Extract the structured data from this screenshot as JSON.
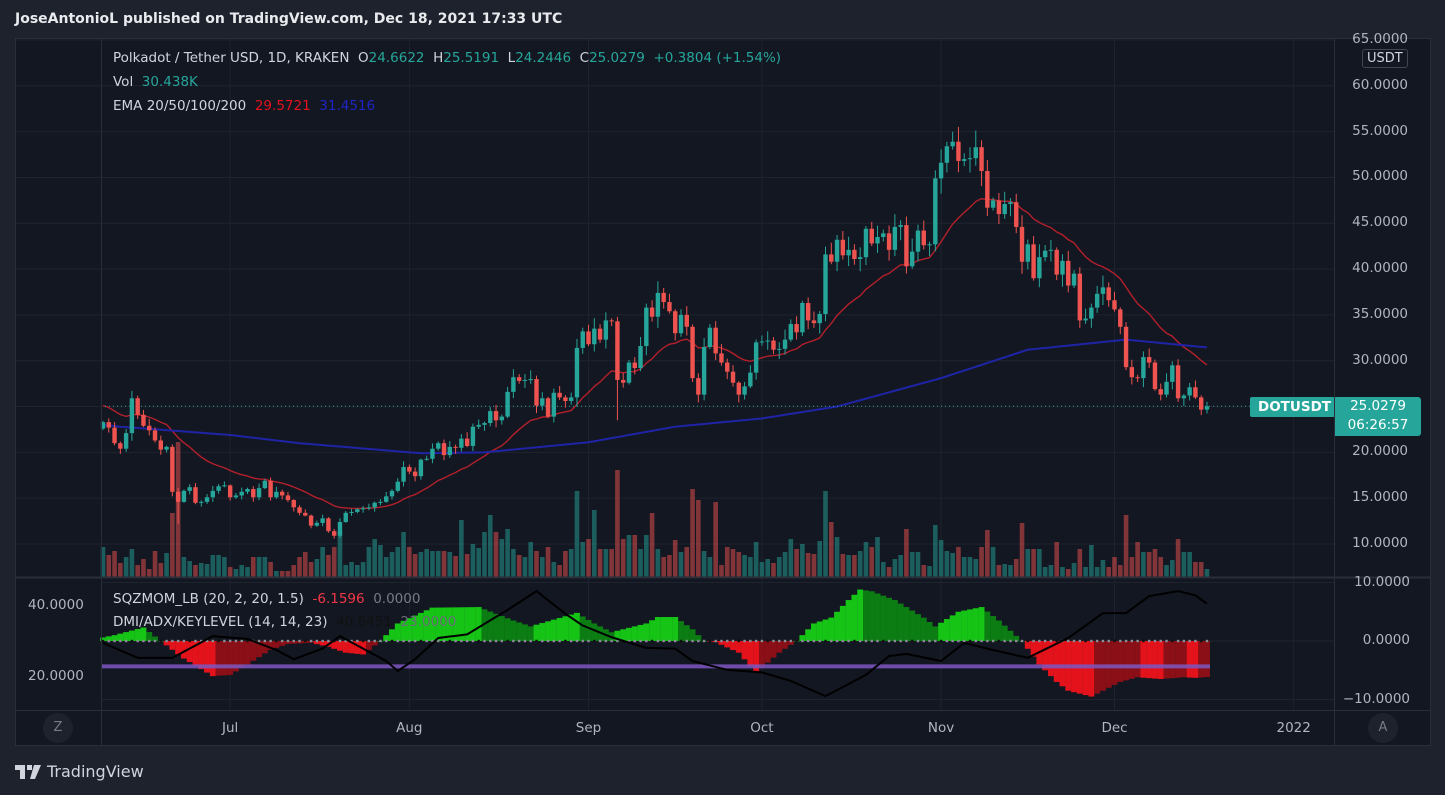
{
  "header": {
    "publish_line": "JoseAntonioL published on TradingView.com, Dec 18, 2021 17:33 UTC"
  },
  "legend": {
    "symbol": "Polkadot / Tether USD, 1D, KRAKEN",
    "o_label": "O",
    "o": "24.6622",
    "h_label": "H",
    "h": "25.5191",
    "l_label": "L",
    "l": "24.2446",
    "c_label": "C",
    "c": "25.0279",
    "change": "+0.3804 (+1.54%)",
    "vol_label": "Vol",
    "vol": "30.438K",
    "ema_label": "EMA 20/50/100/200",
    "ema_a": "29.5721",
    "ema_b": "31.4516"
  },
  "indicator_legend": {
    "sqz_label": "SQZMOM_LB (20, 2, 20, 1.5)",
    "sqz_val": "-6.1596",
    "sqz_val2": "0.0000",
    "dmi_label": "DMI/ADX/KEYLEVEL (14, 14, 23)",
    "dmi_val": "40.6451",
    "dmi_val2": "23.0000"
  },
  "price_axis": {
    "currency": "USDT",
    "ticks": [
      "65.0000",
      "60.0000",
      "55.0000",
      "50.0000",
      "45.0000",
      "40.0000",
      "35.0000",
      "30.0000",
      "20.0000",
      "15.0000",
      "10.0000"
    ],
    "tick_values": [
      65,
      60,
      55,
      50,
      45,
      40,
      35,
      30,
      20,
      15,
      10
    ]
  },
  "indicator_axis_right": {
    "ticks": [
      "10.0000",
      "0.0000",
      "−10.0000"
    ],
    "tick_values": [
      10,
      0,
      -10
    ]
  },
  "indicator_axis_left": {
    "ticks": [
      "40.0000",
      "20.0000"
    ],
    "tick_values": [
      40,
      20
    ]
  },
  "time_axis": {
    "labels": [
      "Jul",
      "Aug",
      "Sep",
      "Oct",
      "Nov",
      "Dec",
      "2022"
    ],
    "label_index": [
      22,
      53,
      84,
      114,
      145,
      175,
      206
    ]
  },
  "last_price": {
    "symbol": "DOTUSDT",
    "price": "25.0279",
    "countdown": "06:26:57",
    "value": 25.0279
  },
  "buttons": {
    "left": "Z",
    "right": "A"
  },
  "footer": {
    "brand": "TradingView"
  },
  "colors": {
    "up": "#26a69a",
    "down": "#ef5350",
    "ema20": "#b3202b",
    "ema_long": "#1f24a6",
    "key_level": "#7e57c2",
    "adx": "#000000",
    "mom_up_strong": "#16c416",
    "mom_up_weak": "#0b7d12",
    "mom_dn_strong": "#e3121b",
    "mom_dn_weak": "#8a0f16"
  },
  "chart_data": {
    "type": "candlestick",
    "title": "Polkadot / Tether USD, 1D, KRAKEN",
    "ylabel": "USDT",
    "ylim": [
      10,
      65
    ],
    "first_open": 22.6,
    "last_ohlc": [
      24.6622,
      25.5191,
      24.2446,
      25.0279
    ],
    "close": [
      23.3,
      22.7,
      21.0,
      20.4,
      22.1,
      25.9,
      24.1,
      22.9,
      22.4,
      21.3,
      20.3,
      20.6,
      15.7,
      14.6,
      15.8,
      16.2,
      14.5,
      14.6,
      15.1,
      15.8,
      16.3,
      16.4,
      15.1,
      15.3,
      15.7,
      16.0,
      15.1,
      16.1,
      16.9,
      15.1,
      15.7,
      15.3,
      14.8,
      14.0,
      13.4,
      13.1,
      12.0,
      12.3,
      12.8,
      11.4,
      10.9,
      12.4,
      13.4,
      13.5,
      13.8,
      13.9,
      14.0,
      14.5,
      14.6,
      15.2,
      15.8,
      16.8,
      18.4,
      17.9,
      17.4,
      19.2,
      19.3,
      20.4,
      21.0,
      19.7,
      20.6,
      20.5,
      21.5,
      20.7,
      22.8,
      23.0,
      23.2,
      24.5,
      23.5,
      23.9,
      26.6,
      28.2,
      27.8,
      27.9,
      28.0,
      25.1,
      25.9,
      23.9,
      26.5,
      26.0,
      25.6,
      26.0,
      31.4,
      33.2,
      31.8,
      33.5,
      32.3,
      34.4,
      34.3,
      27.9,
      27.6,
      29.8,
      29.2,
      31.6,
      35.8,
      34.8,
      37.4,
      36.4,
      35.4,
      33.0,
      35.0,
      33.7,
      28.1,
      26.3,
      31.5,
      33.6,
      30.8,
      29.8,
      28.8,
      27.6,
      26.3,
      27.2,
      28.7,
      32.0,
      32.1,
      32.2,
      31.2,
      31.3,
      32.3,
      34.0,
      33.1,
      36.3,
      34.4,
      34.1,
      35.1,
      41.6,
      40.8,
      43.2,
      41.5,
      42.1,
      41.1,
      41.3,
      44.4,
      42.8,
      43.5,
      43.9,
      42.1,
      44.6,
      44.8,
      40.3,
      41.9,
      44.2,
      42.6,
      42.7,
      49.9,
      51.6,
      53.4,
      53.9,
      51.8,
      52.0,
      52.1,
      53.3,
      50.7,
      46.7,
      47.5,
      46.0,
      47.1,
      47.3,
      44.6,
      40.8,
      42.7,
      39.0,
      41.3,
      42.0,
      42.1,
      39.4,
      40.9,
      38.2,
      39.5,
      34.4,
      34.6,
      35.8,
      37.3,
      38.0,
      36.6,
      35.6,
      33.7,
      29.3,
      28.2,
      28.1,
      30.4,
      29.8,
      26.9,
      26.3,
      27.7,
      29.5,
      25.9,
      26.2,
      27.1,
      26.0,
      24.66,
      25.03
    ],
    "volume": [
      30,
      22,
      26,
      14,
      20,
      28,
      12,
      18,
      8,
      26,
      14,
      24,
      64,
      135,
      20,
      16,
      12,
      14,
      13,
      22,
      22,
      20,
      10,
      8,
      12,
      10,
      20,
      20,
      20,
      15,
      6,
      6,
      6,
      12,
      20,
      25,
      15,
      18,
      30,
      22,
      30,
      45,
      12,
      15,
      12,
      15,
      30,
      38,
      32,
      20,
      25,
      30,
      45,
      30,
      23,
      25,
      28,
      26,
      26,
      26,
      25,
      21,
      57,
      23,
      33,
      29,
      45,
      62,
      45,
      38,
      48,
      28,
      22,
      20,
      35,
      26,
      20,
      30,
      15,
      12,
      26,
      28,
      86,
      35,
      38,
      67,
      28,
      28,
      28,
      107,
      38,
      42,
      42,
      28,
      42,
      64,
      28,
      20,
      22,
      37,
      25,
      30,
      88,
      77,
      26,
      20,
      75,
      12,
      30,
      28,
      25,
      22,
      20,
      35,
      15,
      18,
      14,
      20,
      25,
      38,
      28,
      33,
      24,
      23,
      36,
      86,
      55,
      40,
      23,
      22,
      22,
      26,
      35,
      30,
      40,
      15,
      10,
      18,
      22,
      48,
      25,
      25,
      12,
      11,
      52,
      37,
      26,
      24,
      30,
      20,
      20,
      18,
      30,
      47,
      30,
      12,
      13,
      12,
      18,
      54,
      28,
      28,
      28,
      10,
      12,
      35,
      10,
      8,
      14,
      28,
      10,
      32,
      10,
      17,
      10,
      20,
      12,
      62,
      20,
      35,
      25,
      25,
      28,
      20,
      12,
      17,
      38,
      25,
      25,
      15,
      15,
      8
    ],
    "ema_long_points": [
      [
        0,
        23.0
      ],
      [
        3,
        22.8
      ],
      [
        22,
        21.9
      ],
      [
        34,
        21.0
      ],
      [
        55,
        19.9
      ],
      [
        66,
        20.0
      ],
      [
        84,
        21.1
      ],
      [
        99,
        22.8
      ],
      [
        114,
        23.7
      ],
      [
        127,
        25.0
      ],
      [
        145,
        28.1
      ],
      [
        160,
        31.2
      ],
      [
        177,
        32.3
      ],
      [
        191,
        31.45
      ]
    ],
    "ema20_seed": 25.3,
    "momentum_points": [
      [
        0,
        0.6
      ],
      [
        2,
        1
      ],
      [
        7,
        2.3
      ],
      [
        10,
        0
      ],
      [
        14,
        -3
      ],
      [
        19,
        -6
      ],
      [
        22,
        -5.8
      ],
      [
        25,
        -4
      ],
      [
        29,
        -1.5
      ],
      [
        32,
        -0.5
      ],
      [
        36,
        -0.3
      ],
      [
        39,
        -1
      ],
      [
        42,
        -2
      ],
      [
        45,
        -2.3
      ],
      [
        48,
        0
      ],
      [
        51,
        3
      ],
      [
        57,
        5.7
      ],
      [
        65,
        5.8
      ],
      [
        71,
        3.5
      ],
      [
        74,
        2.5
      ],
      [
        82,
        4.8
      ],
      [
        85,
        3
      ],
      [
        88,
        1.5
      ],
      [
        94,
        3
      ],
      [
        96,
        4.1
      ],
      [
        99,
        4.1
      ],
      [
        102,
        2
      ],
      [
        104,
        0
      ],
      [
        106,
        -0.2
      ],
      [
        110,
        -2
      ],
      [
        113,
        -5.4
      ],
      [
        117,
        -2
      ],
      [
        120,
        0
      ],
      [
        123,
        3
      ],
      [
        126,
        4
      ],
      [
        129,
        7
      ],
      [
        131,
        8.8
      ],
      [
        133,
        8.5
      ],
      [
        137,
        7
      ],
      [
        142,
        4
      ],
      [
        144,
        2.5
      ],
      [
        148,
        5
      ],
      [
        152,
        5.8
      ],
      [
        155,
        3.5
      ],
      [
        159,
        0
      ],
      [
        162,
        -4
      ],
      [
        165,
        -7
      ],
      [
        167,
        -8.5
      ],
      [
        171,
        -9.5
      ],
      [
        176,
        -7
      ],
      [
        179,
        -6.2
      ],
      [
        183,
        -6.5
      ],
      [
        187,
        -6.2
      ],
      [
        189,
        -6.3
      ],
      [
        191,
        -6.16
      ]
    ],
    "adx_points": [
      [
        0,
        29.6
      ],
      [
        6,
        25.4
      ],
      [
        12,
        25.4
      ],
      [
        19,
        31.5
      ],
      [
        25,
        30.7
      ],
      [
        30,
        27.6
      ],
      [
        33,
        25
      ],
      [
        38,
        28
      ],
      [
        41,
        31.5
      ],
      [
        45,
        28
      ],
      [
        49,
        24.5
      ],
      [
        51,
        21.7
      ],
      [
        54,
        25
      ],
      [
        58,
        31
      ],
      [
        63,
        32
      ],
      [
        70,
        38.9
      ],
      [
        75,
        44.2
      ],
      [
        80,
        37.8
      ],
      [
        83,
        34.5
      ],
      [
        88,
        31.2
      ],
      [
        94,
        28.2
      ],
      [
        99,
        28
      ],
      [
        102,
        24.5
      ],
      [
        108,
        22
      ],
      [
        114,
        21.3
      ],
      [
        119,
        18.9
      ],
      [
        125,
        14.6
      ],
      [
        132,
        20.6
      ],
      [
        136,
        25.9
      ],
      [
        139,
        26.5
      ],
      [
        145,
        24.5
      ],
      [
        149,
        29.6
      ],
      [
        154,
        27.6
      ],
      [
        160,
        25.4
      ],
      [
        167,
        31
      ],
      [
        173,
        38
      ],
      [
        177,
        38
      ],
      [
        181,
        42.8
      ],
      [
        186,
        44.2
      ],
      [
        189,
        43
      ],
      [
        191,
        40.65
      ]
    ],
    "key_level": 23,
    "momentum_ylim": [
      -10,
      10
    ],
    "adx_axis_ticks": [
      20,
      40
    ]
  }
}
